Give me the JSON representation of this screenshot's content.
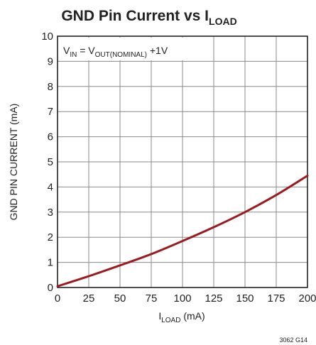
{
  "chart_data": {
    "type": "line",
    "title": {
      "main": "GND Pin Current vs I",
      "sub": "LOAD"
    },
    "xlabel": {
      "main": "I",
      "sub": "LOAD",
      "suffix": " (mA)"
    },
    "ylabel": "GND PIN CURRENT (mA)",
    "xlim": [
      0,
      200
    ],
    "ylim": [
      0,
      10
    ],
    "x_ticks": [
      "0",
      "25",
      "50",
      "75",
      "100",
      "125",
      "150",
      "175",
      "200"
    ],
    "y_ticks": [
      "0",
      "1",
      "2",
      "3",
      "4",
      "5",
      "6",
      "7",
      "8",
      "9",
      "10"
    ],
    "grid": true,
    "annotation": {
      "p1": "V",
      "s1": "IN",
      "p2": " = V",
      "s2": "OUT(NOMINAL)",
      "p3": " +1V"
    },
    "series": [
      {
        "color": "#9b1c20",
        "x": [
          0,
          25,
          50,
          75,
          100,
          125,
          150,
          175,
          200
        ],
        "y": [
          0.05,
          0.45,
          0.88,
          1.33,
          1.85,
          2.4,
          3.0,
          3.68,
          4.45
        ]
      }
    ],
    "figure_id": "3062 G14"
  }
}
